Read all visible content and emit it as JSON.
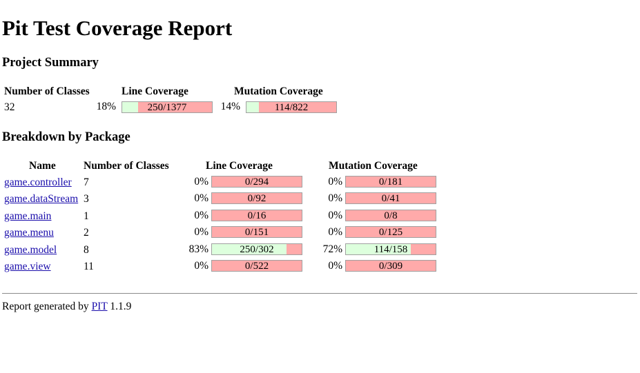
{
  "page": {
    "title": "Pit Test Coverage Report"
  },
  "summary": {
    "heading": "Project Summary",
    "headers": {
      "classes": "Number of Classes",
      "line": "Line Coverage",
      "mutation": "Mutation Coverage"
    },
    "classes": "32",
    "line_percent": "18%",
    "line_text": "250/1377",
    "line_fraction": 0.18,
    "mutation_percent": "14%",
    "mutation_text": "114/822",
    "mutation_fraction": 0.14
  },
  "breakdown": {
    "heading": "Breakdown by Package",
    "headers": {
      "name": "Name",
      "classes": "Number of Classes",
      "line": "Line Coverage",
      "mutation": "Mutation Coverage"
    },
    "rows": [
      {
        "name": "game.controller",
        "classes": "7",
        "line_percent": "0%",
        "line_text": "0/294",
        "line_fraction": 0,
        "mutation_percent": "0%",
        "mutation_text": "0/181",
        "mutation_fraction": 0
      },
      {
        "name": "game.dataStream",
        "classes": "3",
        "line_percent": "0%",
        "line_text": "0/92",
        "line_fraction": 0,
        "mutation_percent": "0%",
        "mutation_text": "0/41",
        "mutation_fraction": 0
      },
      {
        "name": "game.main",
        "classes": "1",
        "line_percent": "0%",
        "line_text": "0/16",
        "line_fraction": 0,
        "mutation_percent": "0%",
        "mutation_text": "0/8",
        "mutation_fraction": 0
      },
      {
        "name": "game.menu",
        "classes": "2",
        "line_percent": "0%",
        "line_text": "0/151",
        "line_fraction": 0,
        "mutation_percent": "0%",
        "mutation_text": "0/125",
        "mutation_fraction": 0
      },
      {
        "name": "game.model",
        "classes": "8",
        "line_percent": "83%",
        "line_text": "250/302",
        "line_fraction": 0.83,
        "mutation_percent": "72%",
        "mutation_text": "114/158",
        "mutation_fraction": 0.72
      },
      {
        "name": "game.view",
        "classes": "11",
        "line_percent": "0%",
        "line_text": "0/522",
        "line_fraction": 0,
        "mutation_percent": "0%",
        "mutation_text": "0/309",
        "mutation_fraction": 0
      }
    ]
  },
  "footer": {
    "prefix": "Report generated by",
    "link": "PIT",
    "version": "1.1.9"
  },
  "colors": {
    "covered": "#ddffdd",
    "uncovered": "#ffaaaa"
  }
}
